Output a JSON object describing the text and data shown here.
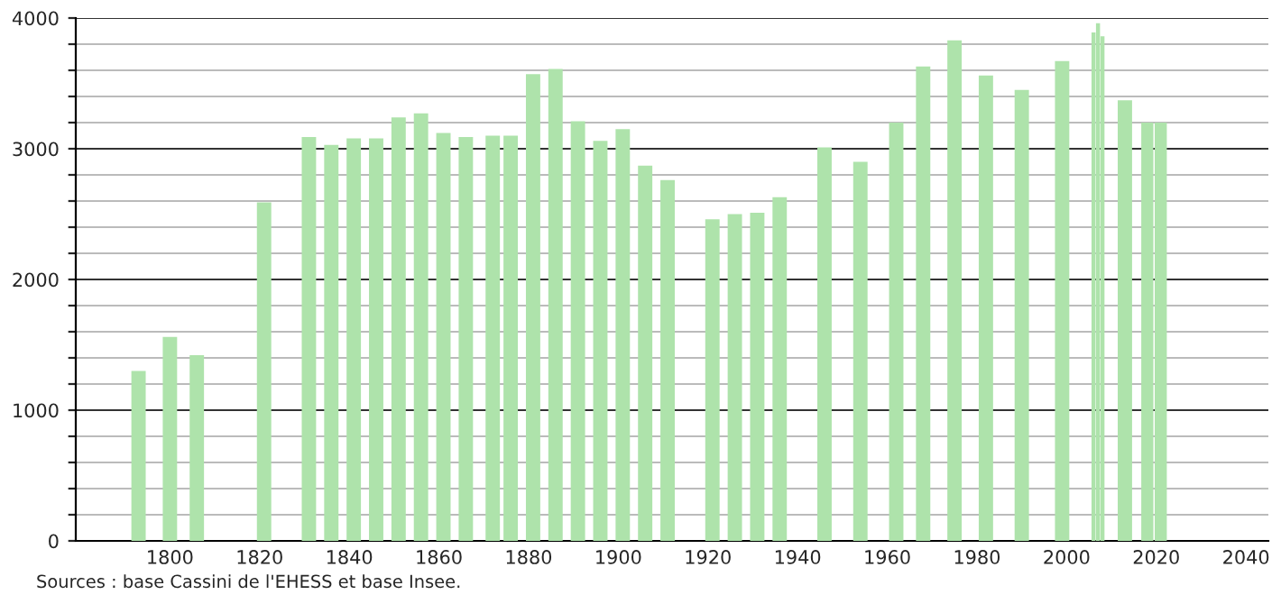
{
  "chart_data": {
    "type": "bar",
    "x": [
      1793,
      1800,
      1806,
      1821,
      1831,
      1836,
      1841,
      1846,
      1851,
      1856,
      1861,
      1866,
      1872,
      1876,
      1881,
      1886,
      1891,
      1896,
      1901,
      1906,
      1911,
      1921,
      1926,
      1931,
      1936,
      1946,
      1954,
      1962,
      1968,
      1975,
      1982,
      1990,
      1999,
      2006,
      2007,
      2008,
      2013,
      2018,
      2021
    ],
    "values": [
      1300,
      1560,
      1420,
      2590,
      3090,
      3030,
      3080,
      3080,
      3240,
      3270,
      3120,
      3090,
      3100,
      3100,
      3570,
      3610,
      3210,
      3060,
      3150,
      2870,
      2760,
      2460,
      2500,
      2510,
      2630,
      3010,
      2900,
      3200,
      3630,
      3830,
      3560,
      3450,
      3670,
      3890,
      3960,
      3860,
      3370,
      3200,
      3200
    ],
    "color": "#aee3ab",
    "xlim": [
      1779,
      2045
    ],
    "xticks": [
      1800,
      1820,
      1840,
      1860,
      1880,
      1900,
      1920,
      1940,
      1960,
      1980,
      2000,
      2020,
      2040
    ],
    "ylim": [
      0,
      4000
    ],
    "yticks": [
      0,
      {
        "value": 200,
        "label": null
      },
      {
        "value": 400,
        "label": null
      },
      {
        "value": 600,
        "label": null
      },
      {
        "value": 800,
        "label": null
      },
      1000,
      {
        "value": 1200,
        "label": null
      },
      {
        "value": 1400,
        "label": null
      },
      {
        "value": 1600,
        "label": null
      },
      {
        "value": 1800,
        "label": null
      },
      2000,
      {
        "value": 2200,
        "label": null
      },
      {
        "value": 2400,
        "label": null
      },
      {
        "value": 2600,
        "label": null
      },
      {
        "value": 2800,
        "label": null
      },
      3000,
      {
        "value": 3200,
        "label": null
      },
      {
        "value": 3400,
        "label": null
      },
      {
        "value": 3600,
        "label": null
      },
      {
        "value": 3800,
        "label": null
      },
      4000
    ],
    "grid": "y",
    "annotations": [
      "Sources : base Cassini de l'EHESS et base Insee."
    ]
  }
}
